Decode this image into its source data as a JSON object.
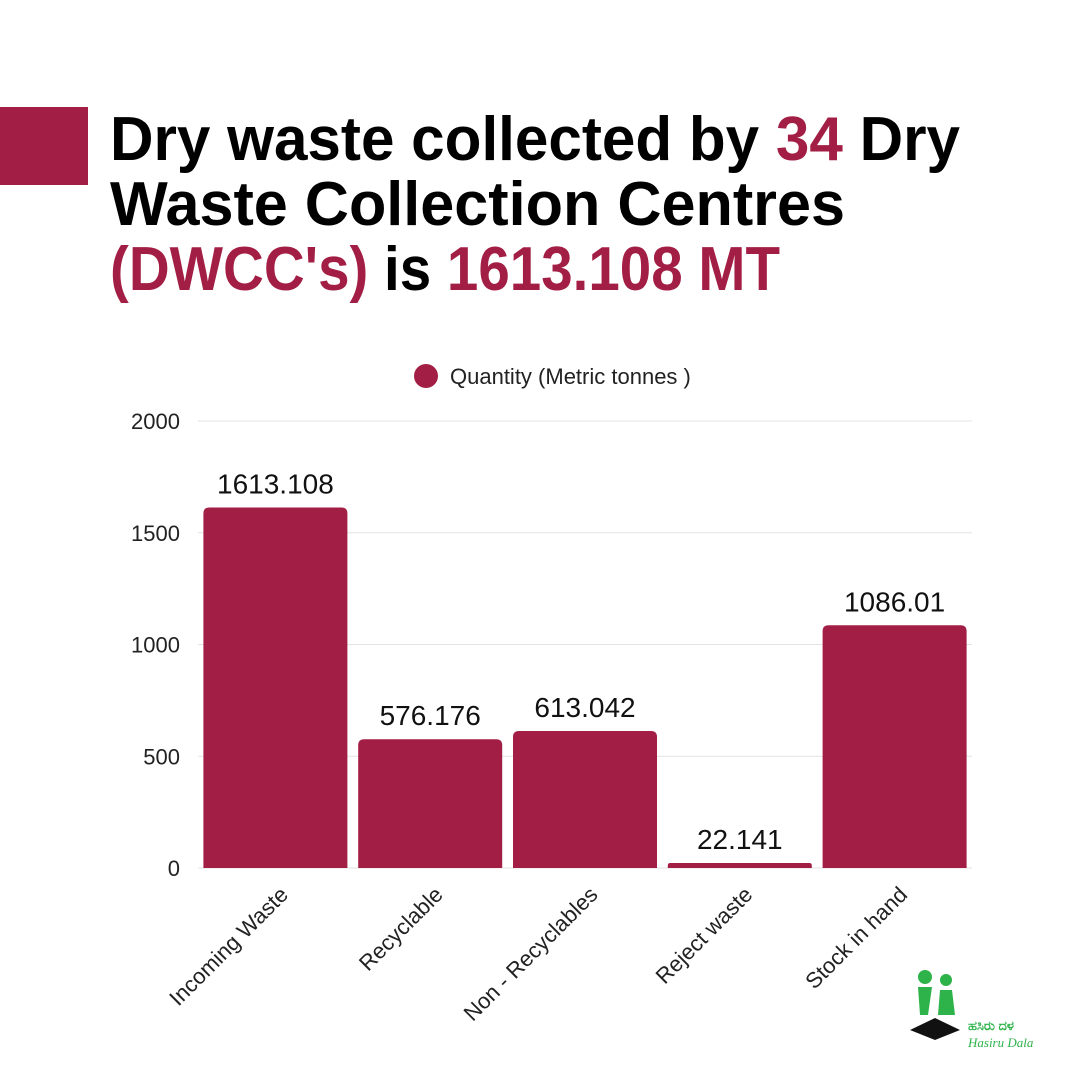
{
  "chart_data": {
    "type": "bar",
    "title": [
      [
        {
          "text": "Dry waste collected by ",
          "color": "#000000"
        },
        {
          "text": "34",
          "color": "#a31e44"
        },
        {
          "text": " Dry",
          "color": "#000000"
        }
      ],
      [
        {
          "text": "Waste Collection Centres",
          "color": "#000000"
        }
      ],
      [
        {
          "text": "(DWCC's)",
          "color": "#a31e44"
        },
        {
          "text": " is ",
          "color": "#000000"
        },
        {
          "text": "1613.108 MT",
          "color": "#a31e44"
        }
      ]
    ],
    "categories": [
      "Incoming Waste",
      "Recyclable",
      "Non - Recyclables",
      "Reject waste",
      "Stock in hand"
    ],
    "series": [
      {
        "name": "Quantity (Metric tonnes )",
        "color": "#a31e44",
        "values": [
          1613.108,
          576.176,
          613.042,
          22.141,
          1086.01
        ]
      }
    ],
    "ylim": [
      0,
      2000
    ],
    "yticks": [
      0,
      500,
      1000,
      1500,
      2000
    ],
    "grid": true,
    "legend": "top"
  },
  "logo": {
    "kannada": "ಹಸಿರು ದಳ",
    "latin": "Hasiru Dala"
  }
}
